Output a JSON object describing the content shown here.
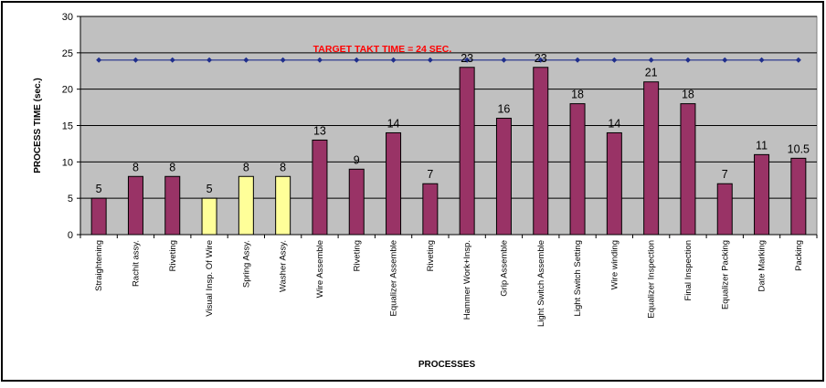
{
  "chart_data": {
    "type": "bar",
    "title": "",
    "xlabel": "PROCESSES",
    "ylabel": "PROCESS TIME (sec.)",
    "ylim": [
      0,
      30
    ],
    "yticks": [
      0,
      5,
      10,
      15,
      20,
      25,
      30
    ],
    "grid": true,
    "categories": [
      "Straightening",
      "Rachit assy.",
      "Riveting",
      "Visual Insp. Of Wire",
      "Spring Assy.",
      "Washer Assy.",
      "Wire Assemble",
      "Riveting",
      "Equalizer Assemble",
      "Riveting",
      "Hammer Work+Insp.",
      "Grip Assemble",
      "Light Switch Assemble",
      "Light Switch Setting",
      "Wire winding",
      "Equalizer Inspection",
      "Final Inspection",
      "Equalizer Packing",
      "Date Marking",
      "Packing"
    ],
    "values": [
      5,
      8,
      8,
      5,
      8,
      8,
      13,
      9,
      14,
      7,
      23,
      16,
      23,
      18,
      14,
      21,
      18,
      7,
      11,
      10.5
    ],
    "value_labels": [
      "5",
      "8",
      "8",
      "5",
      "8",
      "8",
      "13",
      "9",
      "14",
      "7",
      "23",
      "16",
      "23",
      "18",
      "14",
      "21",
      "18",
      "7",
      "11",
      "10.5"
    ],
    "highlighted_indices": [
      3,
      4,
      5
    ],
    "target": {
      "label": "TARGET TAKT TIME = 24 SEC.",
      "value": 24,
      "color": "#1f2e8c",
      "label_color": "#ff0000"
    },
    "colors": {
      "bar": "#993366",
      "bar_highlight": "#ffff99",
      "plot_background": "#c0c0c0",
      "gridline": "#000000"
    }
  }
}
